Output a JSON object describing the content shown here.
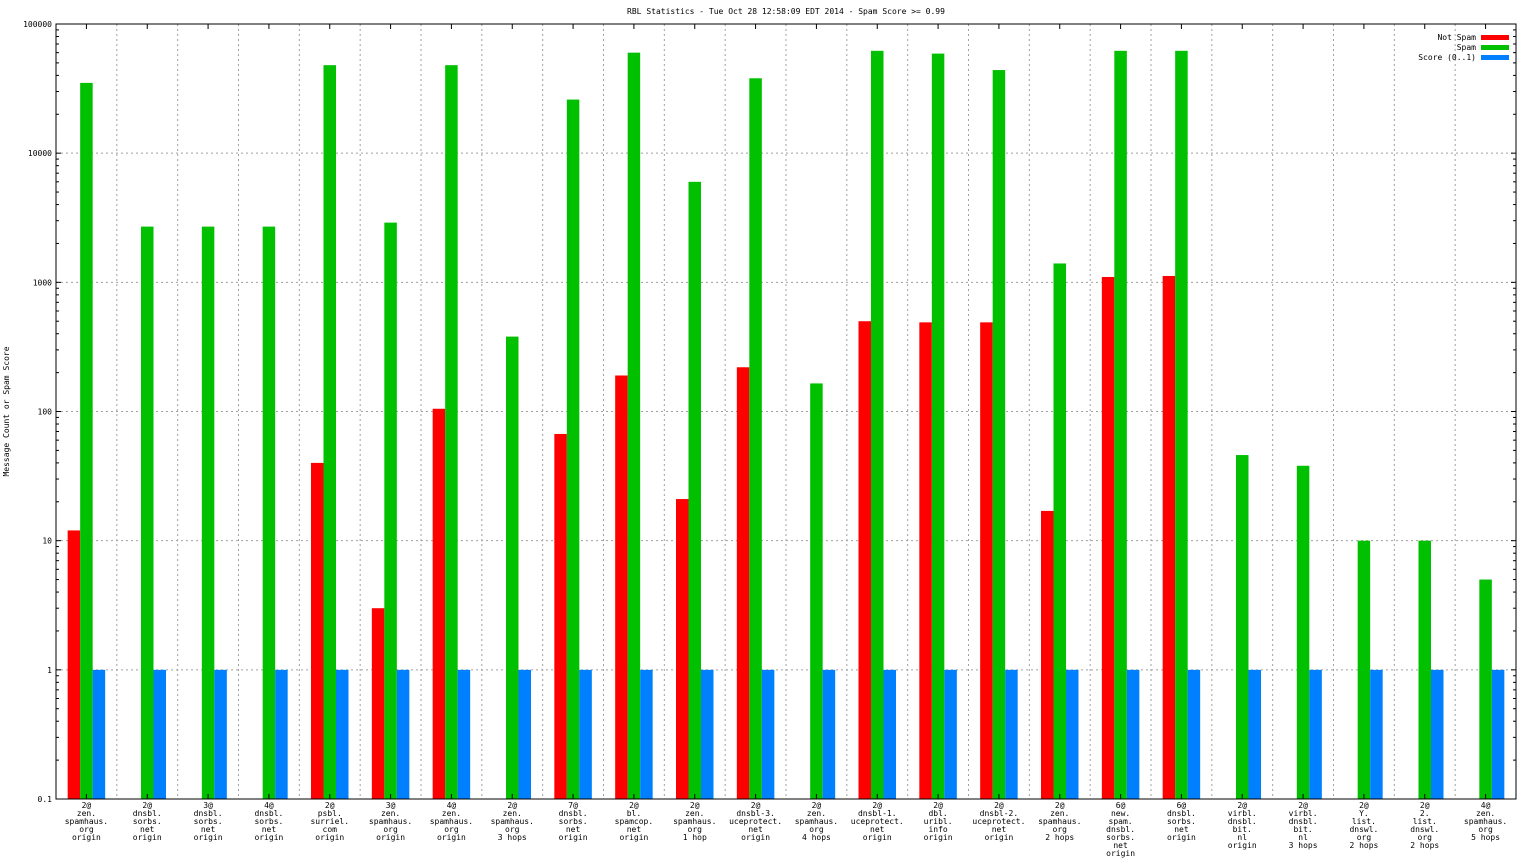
{
  "chart_data": {
    "type": "bar",
    "title": "RBL Statistics - Tue Oct 28 12:58:09 EDT 2014 - Spam Score >= 0.99",
    "ylabel": "Message Count or Spam Score",
    "xlabel": "",
    "yscale": "log",
    "ylim": [
      0.1,
      100000
    ],
    "yticks": [
      "0.1",
      "1",
      "10",
      "100",
      "1000",
      "10000",
      "100000"
    ],
    "grid": true,
    "legend_position": "top-right",
    "categories": [
      [
        "2@",
        "zen.",
        "spamhaus.",
        "org",
        "origin"
      ],
      [
        "2@",
        "dnsbl.",
        "sorbs.",
        "net",
        "origin"
      ],
      [
        "3@",
        "dnsbl.",
        "sorbs.",
        "net",
        "origin"
      ],
      [
        "4@",
        "dnsbl.",
        "sorbs.",
        "net",
        "origin"
      ],
      [
        "2@",
        "psbl.",
        "surriel.",
        "com",
        "origin"
      ],
      [
        "3@",
        "zen.",
        "spamhaus.",
        "org",
        "origin"
      ],
      [
        "4@",
        "zen.",
        "spamhaus.",
        "org",
        "origin"
      ],
      [
        "2@",
        "zen.",
        "spamhaus.",
        "org",
        "3 hops"
      ],
      [
        "7@",
        "dnsbl.",
        "sorbs.",
        "net",
        "origin"
      ],
      [
        "2@",
        "bl.",
        "spamcop.",
        "net",
        "origin"
      ],
      [
        "2@",
        "zen.",
        "spamhaus.",
        "org",
        "1 hop"
      ],
      [
        "2@",
        "dnsbl-3.",
        "uceprotect.",
        "net",
        "origin"
      ],
      [
        "2@",
        "zen.",
        "spamhaus.",
        "org",
        "4 hops"
      ],
      [
        "2@",
        "dnsbl-1.",
        "uceprotect.",
        "net",
        "origin"
      ],
      [
        "2@",
        "dbl.",
        "uribl.",
        "info",
        "origin"
      ],
      [
        "2@",
        "dnsbl-2.",
        "uceprotect.",
        "net",
        "origin"
      ],
      [
        "2@",
        "zen.",
        "spamhaus.",
        "org",
        "2 hops"
      ],
      [
        "6@",
        "new.",
        "spam.",
        "dnsbl.",
        "sorbs.",
        "net",
        "origin"
      ],
      [
        "6@",
        "dnsbl.",
        "sorbs.",
        "net",
        "origin"
      ],
      [
        "2@",
        "virbl.",
        "dnsbl.",
        "bit.",
        "nl",
        "origin"
      ],
      [
        "2@",
        "virbl.",
        "dnsbl.",
        "bit.",
        "nl",
        "3 hops"
      ],
      [
        "2@",
        "Y.",
        "list.",
        "dnswl.",
        "org",
        "2 hops"
      ],
      [
        "2@",
        "2.",
        "list.",
        "dnswl.",
        "org",
        "2 hops"
      ],
      [
        "4@",
        "zen.",
        "spamhaus.",
        "org",
        "5 hops"
      ]
    ],
    "series": [
      {
        "name": "Not Spam",
        "color": "#ff0000",
        "values": [
          12,
          null,
          null,
          null,
          40,
          3,
          105,
          null,
          67,
          190,
          21,
          220,
          null,
          500,
          490,
          490,
          17,
          1100,
          1120,
          null,
          null,
          null,
          null,
          null
        ]
      },
      {
        "name": "Spam",
        "color": "#00c000",
        "values": [
          35000,
          2700,
          2700,
          2700,
          48000,
          2900,
          48000,
          380,
          26000,
          60000,
          6000,
          38000,
          165,
          62000,
          59000,
          44000,
          1400,
          62000,
          62000,
          46,
          38,
          10,
          10,
          5
        ]
      },
      {
        "name": "Score (0..1)",
        "color": "#0080ff",
        "values": [
          1,
          1,
          1,
          1,
          1,
          1,
          1,
          1,
          1,
          1,
          1,
          1,
          1,
          1,
          1,
          1,
          1,
          1,
          1,
          1,
          1,
          1,
          1,
          1
        ]
      }
    ]
  }
}
